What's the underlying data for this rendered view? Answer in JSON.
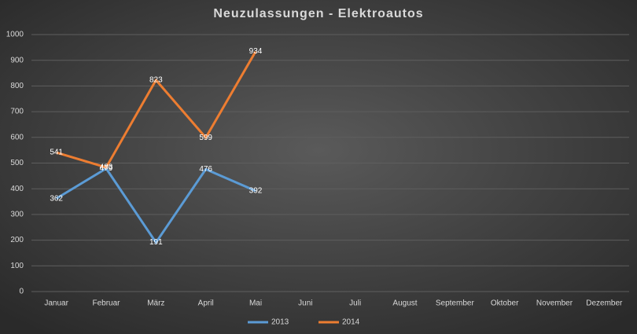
{
  "chart_data": {
    "type": "line",
    "title": "Neuzulassungen - Elektroautos",
    "categories": [
      "Januar",
      "Februar",
      "März",
      "April",
      "Mai",
      "Juni",
      "Juli",
      "August",
      "September",
      "Oktober",
      "November",
      "Dezember"
    ],
    "series": [
      {
        "name": "2013",
        "color": "#5b9bd5",
        "values": [
          362,
          479,
          191,
          476,
          392,
          null,
          null,
          null,
          null,
          null,
          null,
          null
        ]
      },
      {
        "name": "2014",
        "color": "#ed7d31",
        "values": [
          541,
          483,
          823,
          599,
          934,
          null,
          null,
          null,
          null,
          null,
          null,
          null
        ]
      }
    ],
    "ylim": [
      0,
      1000
    ],
    "yticks": [
      0,
      100,
      200,
      300,
      400,
      500,
      600,
      700,
      800,
      900,
      1000
    ],
    "grid": true,
    "legend": "bottom"
  }
}
